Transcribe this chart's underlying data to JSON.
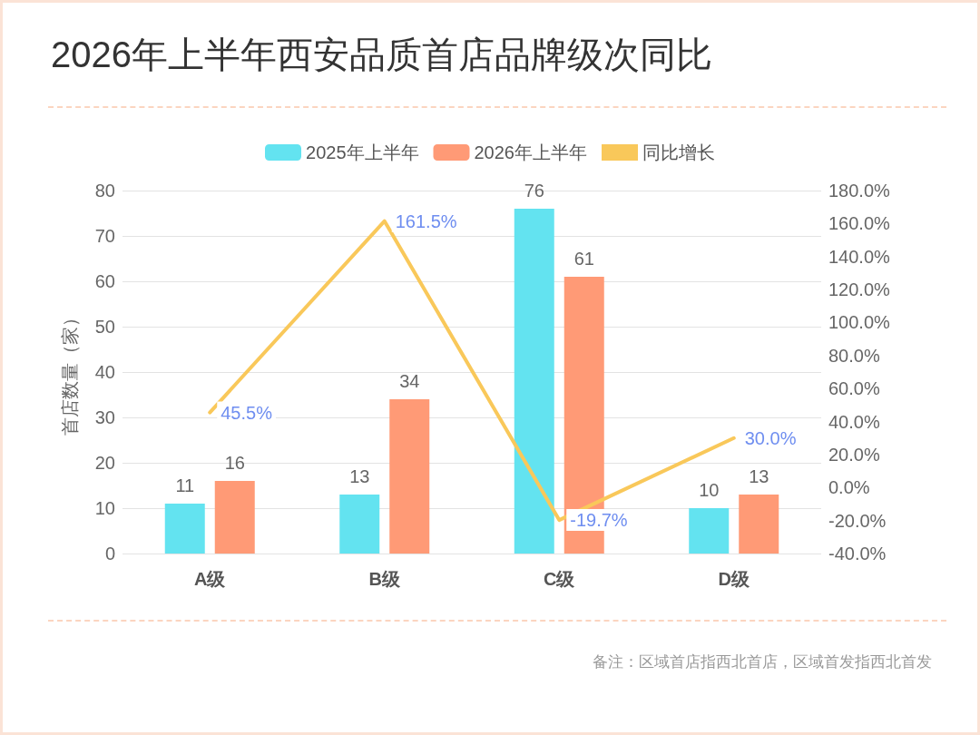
{
  "chart_data": {
    "type": "bar",
    "title": "2026年上半年西安品质首店品牌级次同比",
    "ylabel": "首店数量（家）",
    "categories": [
      "A级",
      "B级",
      "C级",
      "D级"
    ],
    "series": [
      {
        "name": "2025年上半年",
        "color": "#63e3f0",
        "values": [
          11,
          13,
          76,
          10
        ],
        "value_labels": [
          "11",
          "13",
          "76",
          "10"
        ]
      },
      {
        "name": "2026年上半年",
        "color": "#ff9a76",
        "values": [
          16,
          34,
          61,
          13
        ],
        "value_labels": [
          "16",
          "34",
          "61",
          "13"
        ]
      },
      {
        "name": "同比增长",
        "type": "line",
        "axis": "y2",
        "color": "#f9c85a",
        "values": [
          45.5,
          161.5,
          -19.7,
          30.0
        ],
        "value_labels": [
          "45.5%",
          "161.5%",
          "-19.7%",
          "30.0%"
        ]
      }
    ],
    "ylim": [
      0,
      80
    ],
    "yticks": [
      0,
      10,
      20,
      30,
      40,
      50,
      60,
      70,
      80
    ],
    "y2lim": [
      -40,
      180
    ],
    "y2ticks": [
      {
        "value": -40,
        "label": "-40.0%"
      },
      {
        "value": -20,
        "label": "-20.0%"
      },
      {
        "value": 0,
        "label": "0.0%"
      },
      {
        "value": 20,
        "label": "20.0%"
      },
      {
        "value": 40,
        "label": "40.0%"
      },
      {
        "value": 60,
        "label": "60.0%"
      },
      {
        "value": 80,
        "label": "80.0%"
      },
      {
        "value": 100,
        "label": "100.0%"
      },
      {
        "value": 120,
        "label": "120.0%"
      },
      {
        "value": 140,
        "label": "140.0%"
      },
      {
        "value": 160,
        "label": "160.0%"
      },
      {
        "value": 180,
        "label": "180.0%"
      }
    ],
    "grid": "y",
    "legend": "top",
    "marker": "none",
    "line_style": "solid",
    "annotations": [
      "备注：区域首店指西北首店，区域首发指西北首发"
    ]
  }
}
